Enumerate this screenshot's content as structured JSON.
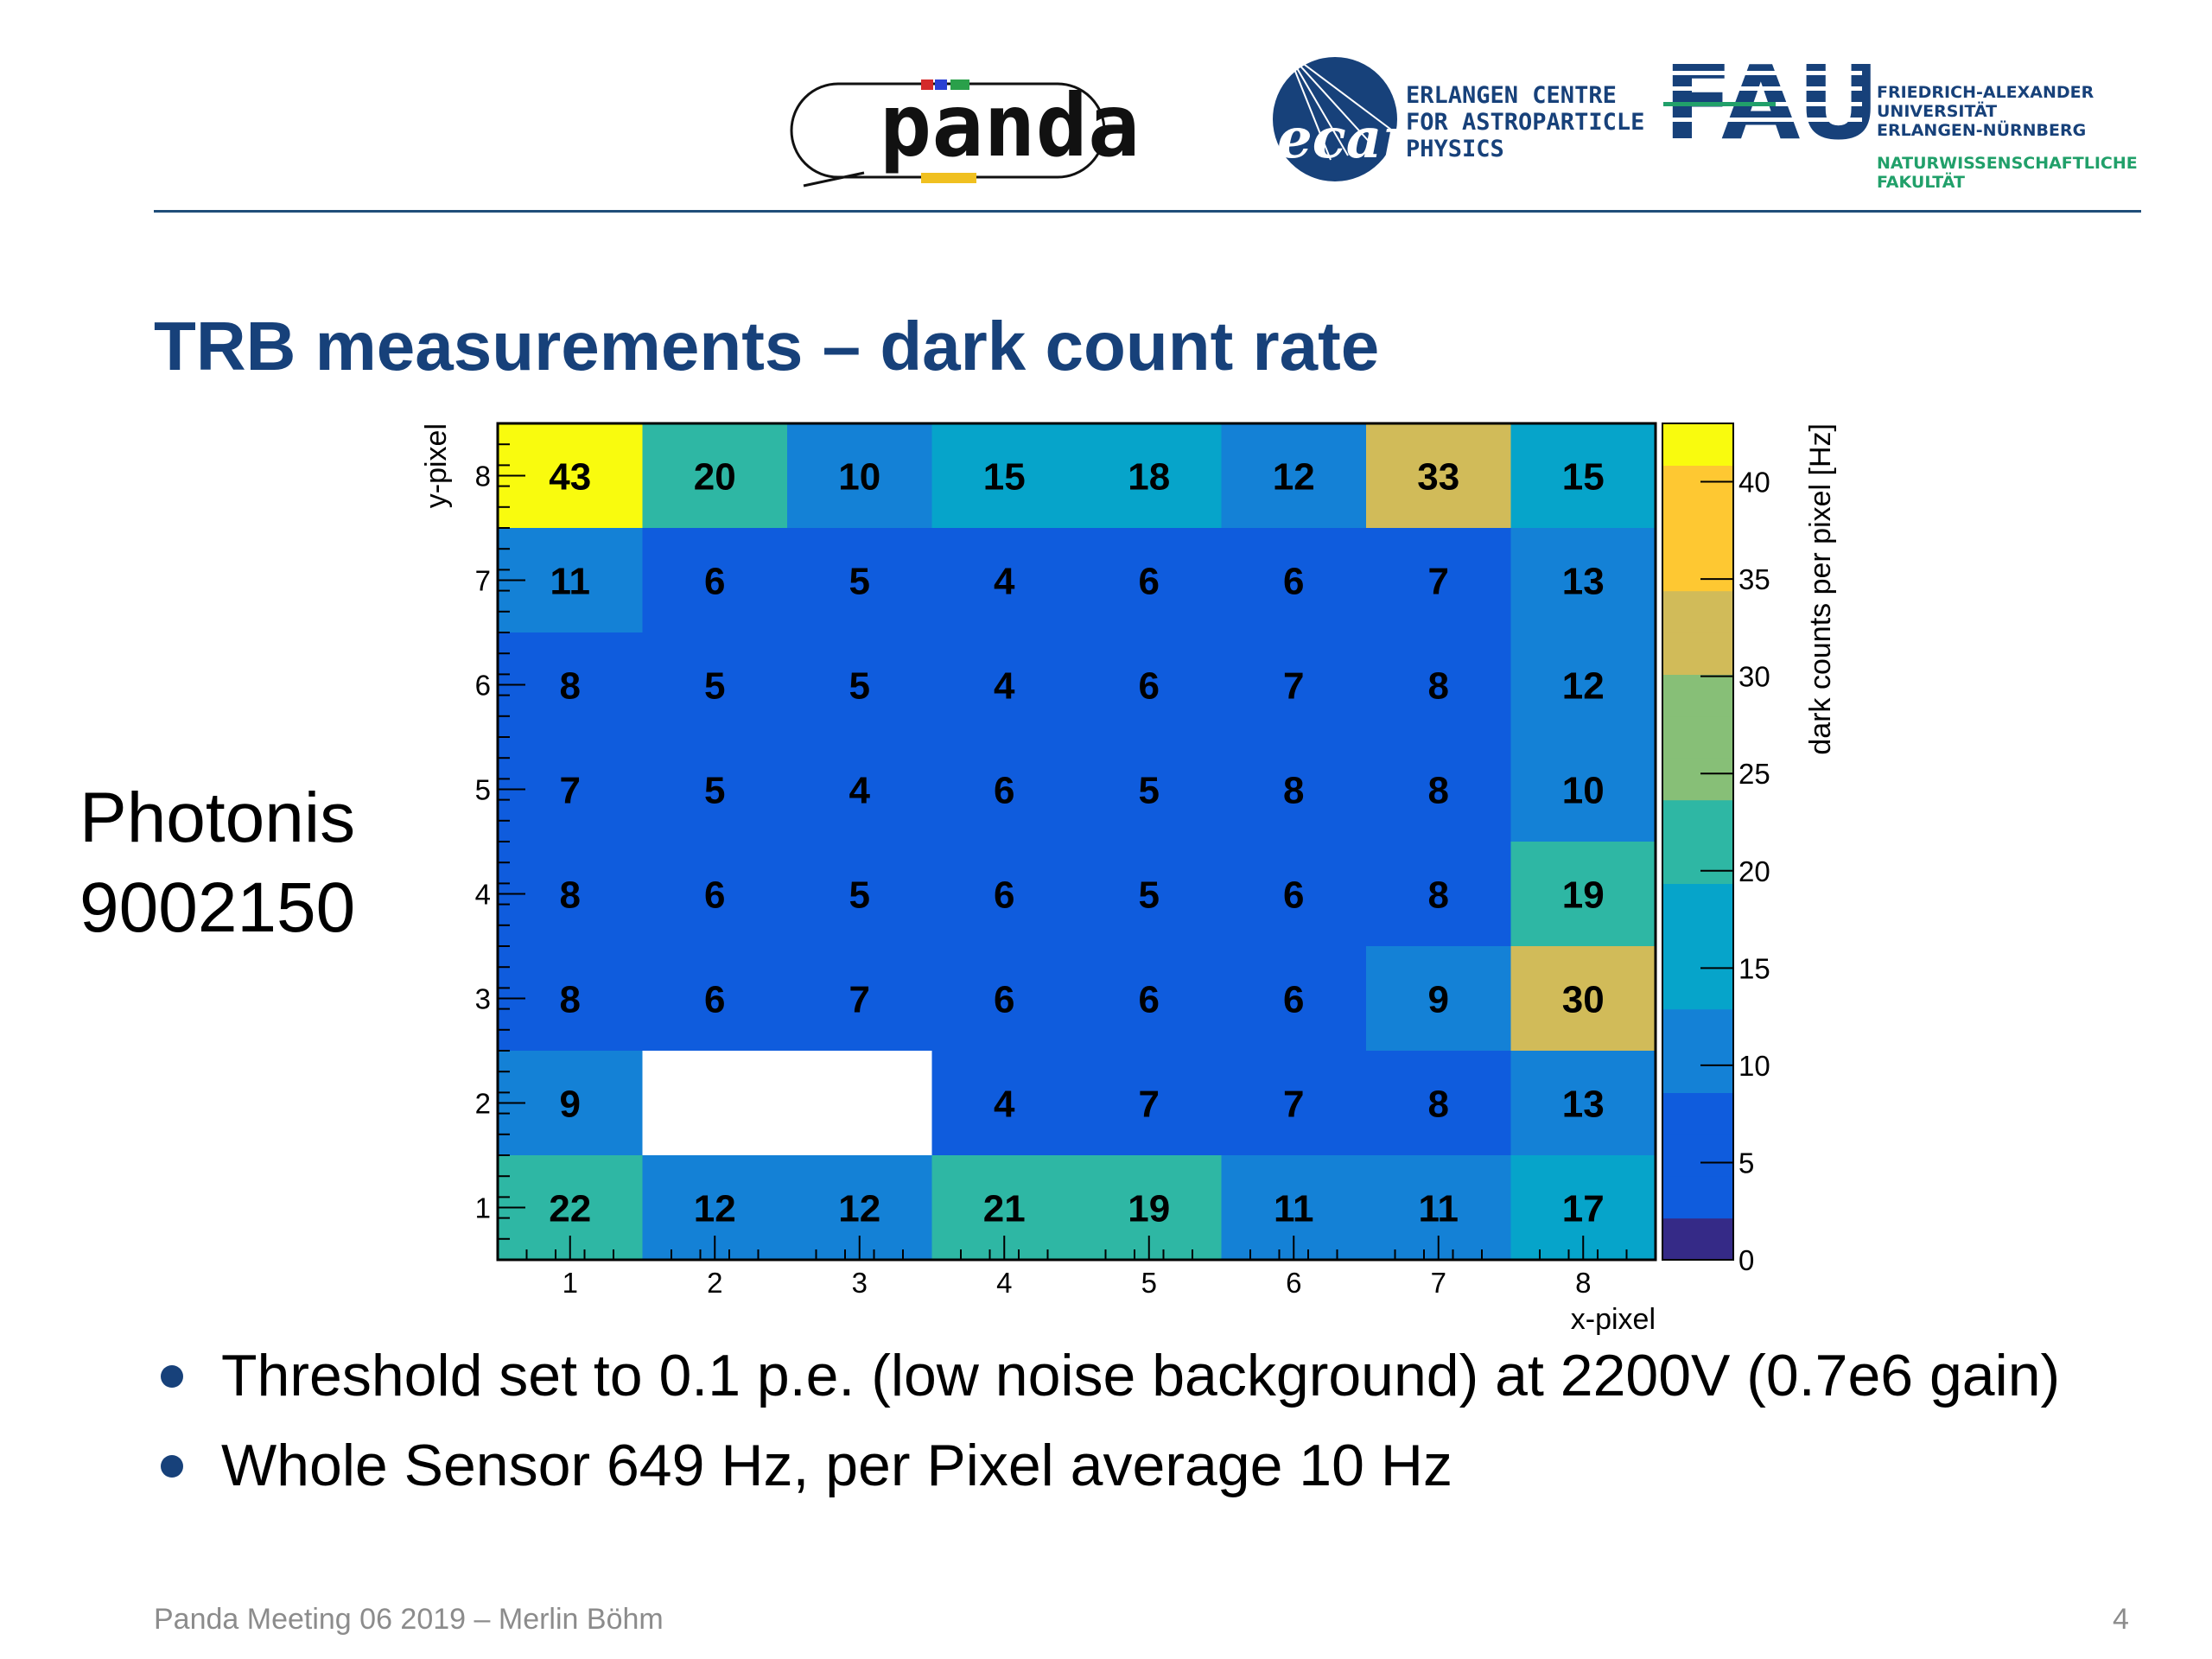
{
  "header": {
    "panda_logo": "panda",
    "ecap_logo": "ecap",
    "ecap_lines": [
      "ERLANGEN CENTRE",
      "FOR ASTROPARTICLE",
      "PHYSICS"
    ],
    "fau_logo": "FAU",
    "fau_lines": [
      "FRIEDRICH-ALEXANDER",
      "UNIVERSITÄT",
      "ERLANGEN-NÜRNBERG"
    ],
    "fau_faculty_lines": [
      "NATURWISSENSCHAFTLICHE",
      "FAKULTÄT"
    ]
  },
  "slide": {
    "title": "TRB measurements – dark count rate",
    "side_label_line1": "Photonis",
    "side_label_line2": "9002150",
    "bullets": [
      "Threshold set to 0.1 p.e. (low noise background) at 2200V (0.7e6 gain)",
      "Whole Sensor 649 Hz, per Pixel average 10 Hz"
    ],
    "footer": "Panda Meeting 06 2019 – Merlin Böhm",
    "page_number": "4"
  },
  "chart_data": {
    "type": "heatmap",
    "xlabel": "x-pixel",
    "ylabel": "y-pixel",
    "zlabel": "dark counts per pixel  [Hz]",
    "x_ticks": [
      "1",
      "2",
      "3",
      "4",
      "5",
      "6",
      "7",
      "8"
    ],
    "y_ticks": [
      "1",
      "2",
      "3",
      "4",
      "5",
      "6",
      "7",
      "8"
    ],
    "z_ticks": [
      "0",
      "5",
      "10",
      "15",
      "20",
      "25",
      "30",
      "35",
      "40"
    ],
    "zlim": [
      0,
      43
    ],
    "rows_top_to_bottom_y": [
      8,
      7,
      6,
      5,
      4,
      3,
      2,
      1
    ],
    "values": [
      [
        43,
        20,
        10,
        15,
        18,
        12,
        33,
        15
      ],
      [
        11,
        6,
        5,
        4,
        6,
        6,
        7,
        13
      ],
      [
        8,
        5,
        5,
        4,
        6,
        7,
        8,
        12
      ],
      [
        7,
        5,
        4,
        6,
        5,
        8,
        8,
        10
      ],
      [
        8,
        6,
        5,
        6,
        5,
        6,
        8,
        19
      ],
      [
        8,
        6,
        7,
        6,
        6,
        6,
        9,
        30
      ],
      [
        9,
        null,
        null,
        4,
        7,
        7,
        8,
        13
      ],
      [
        22,
        12,
        12,
        21,
        19,
        11,
        11,
        17
      ]
    ],
    "colorscale": [
      "#352a87",
      "#0f5cdd",
      "#1481d6",
      "#06a4ca",
      "#2eb7a4",
      "#87bf77",
      "#d1bb59",
      "#fec832",
      "#f9fb0e"
    ]
  }
}
